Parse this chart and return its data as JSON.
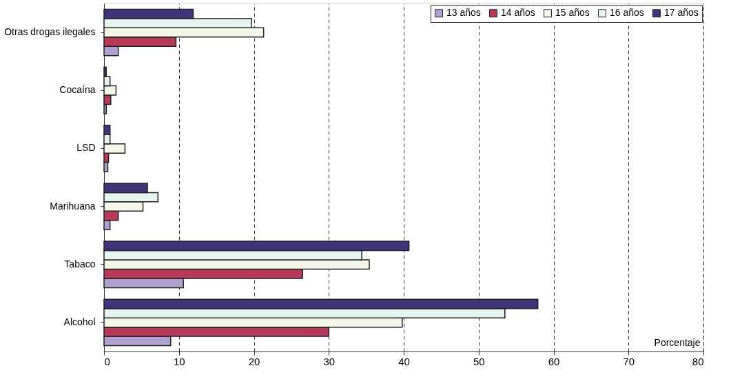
{
  "chart_data": {
    "type": "bar",
    "orientation": "horizontal",
    "xlabel": "Porcentaje",
    "categories": [
      "Otras drogas ilegales",
      "Cocaína",
      "LSD",
      "Marihuana",
      "Tabaco",
      "Alcohol"
    ],
    "series": [
      {
        "name": "13 años",
        "color": "#b0a0d0",
        "values": [
          1.9,
          0.3,
          0.5,
          0.8,
          10.6,
          8.9
        ]
      },
      {
        "name": "14 años",
        "color": "#b93a58",
        "values": [
          9.6,
          0.9,
          0.6,
          1.9,
          26.5,
          30.0
        ]
      },
      {
        "name": "15 años",
        "color": "#f2f7e8",
        "values": [
          21.3,
          1.6,
          2.8,
          5.2,
          35.4,
          39.8
        ]
      },
      {
        "name": "16 años",
        "color": "#e6f4f0",
        "values": [
          19.7,
          0.8,
          0.8,
          7.2,
          34.4,
          53.5
        ]
      },
      {
        "name": "17 años",
        "color": "#40357a",
        "values": [
          11.9,
          0.3,
          0.8,
          5.8,
          40.7,
          57.9
        ]
      }
    ],
    "xlim": [
      0,
      80
    ],
    "xticks": [
      0,
      10,
      20,
      30,
      40,
      50,
      60,
      70,
      80
    ],
    "grid": "x",
    "legend": "top right"
  }
}
